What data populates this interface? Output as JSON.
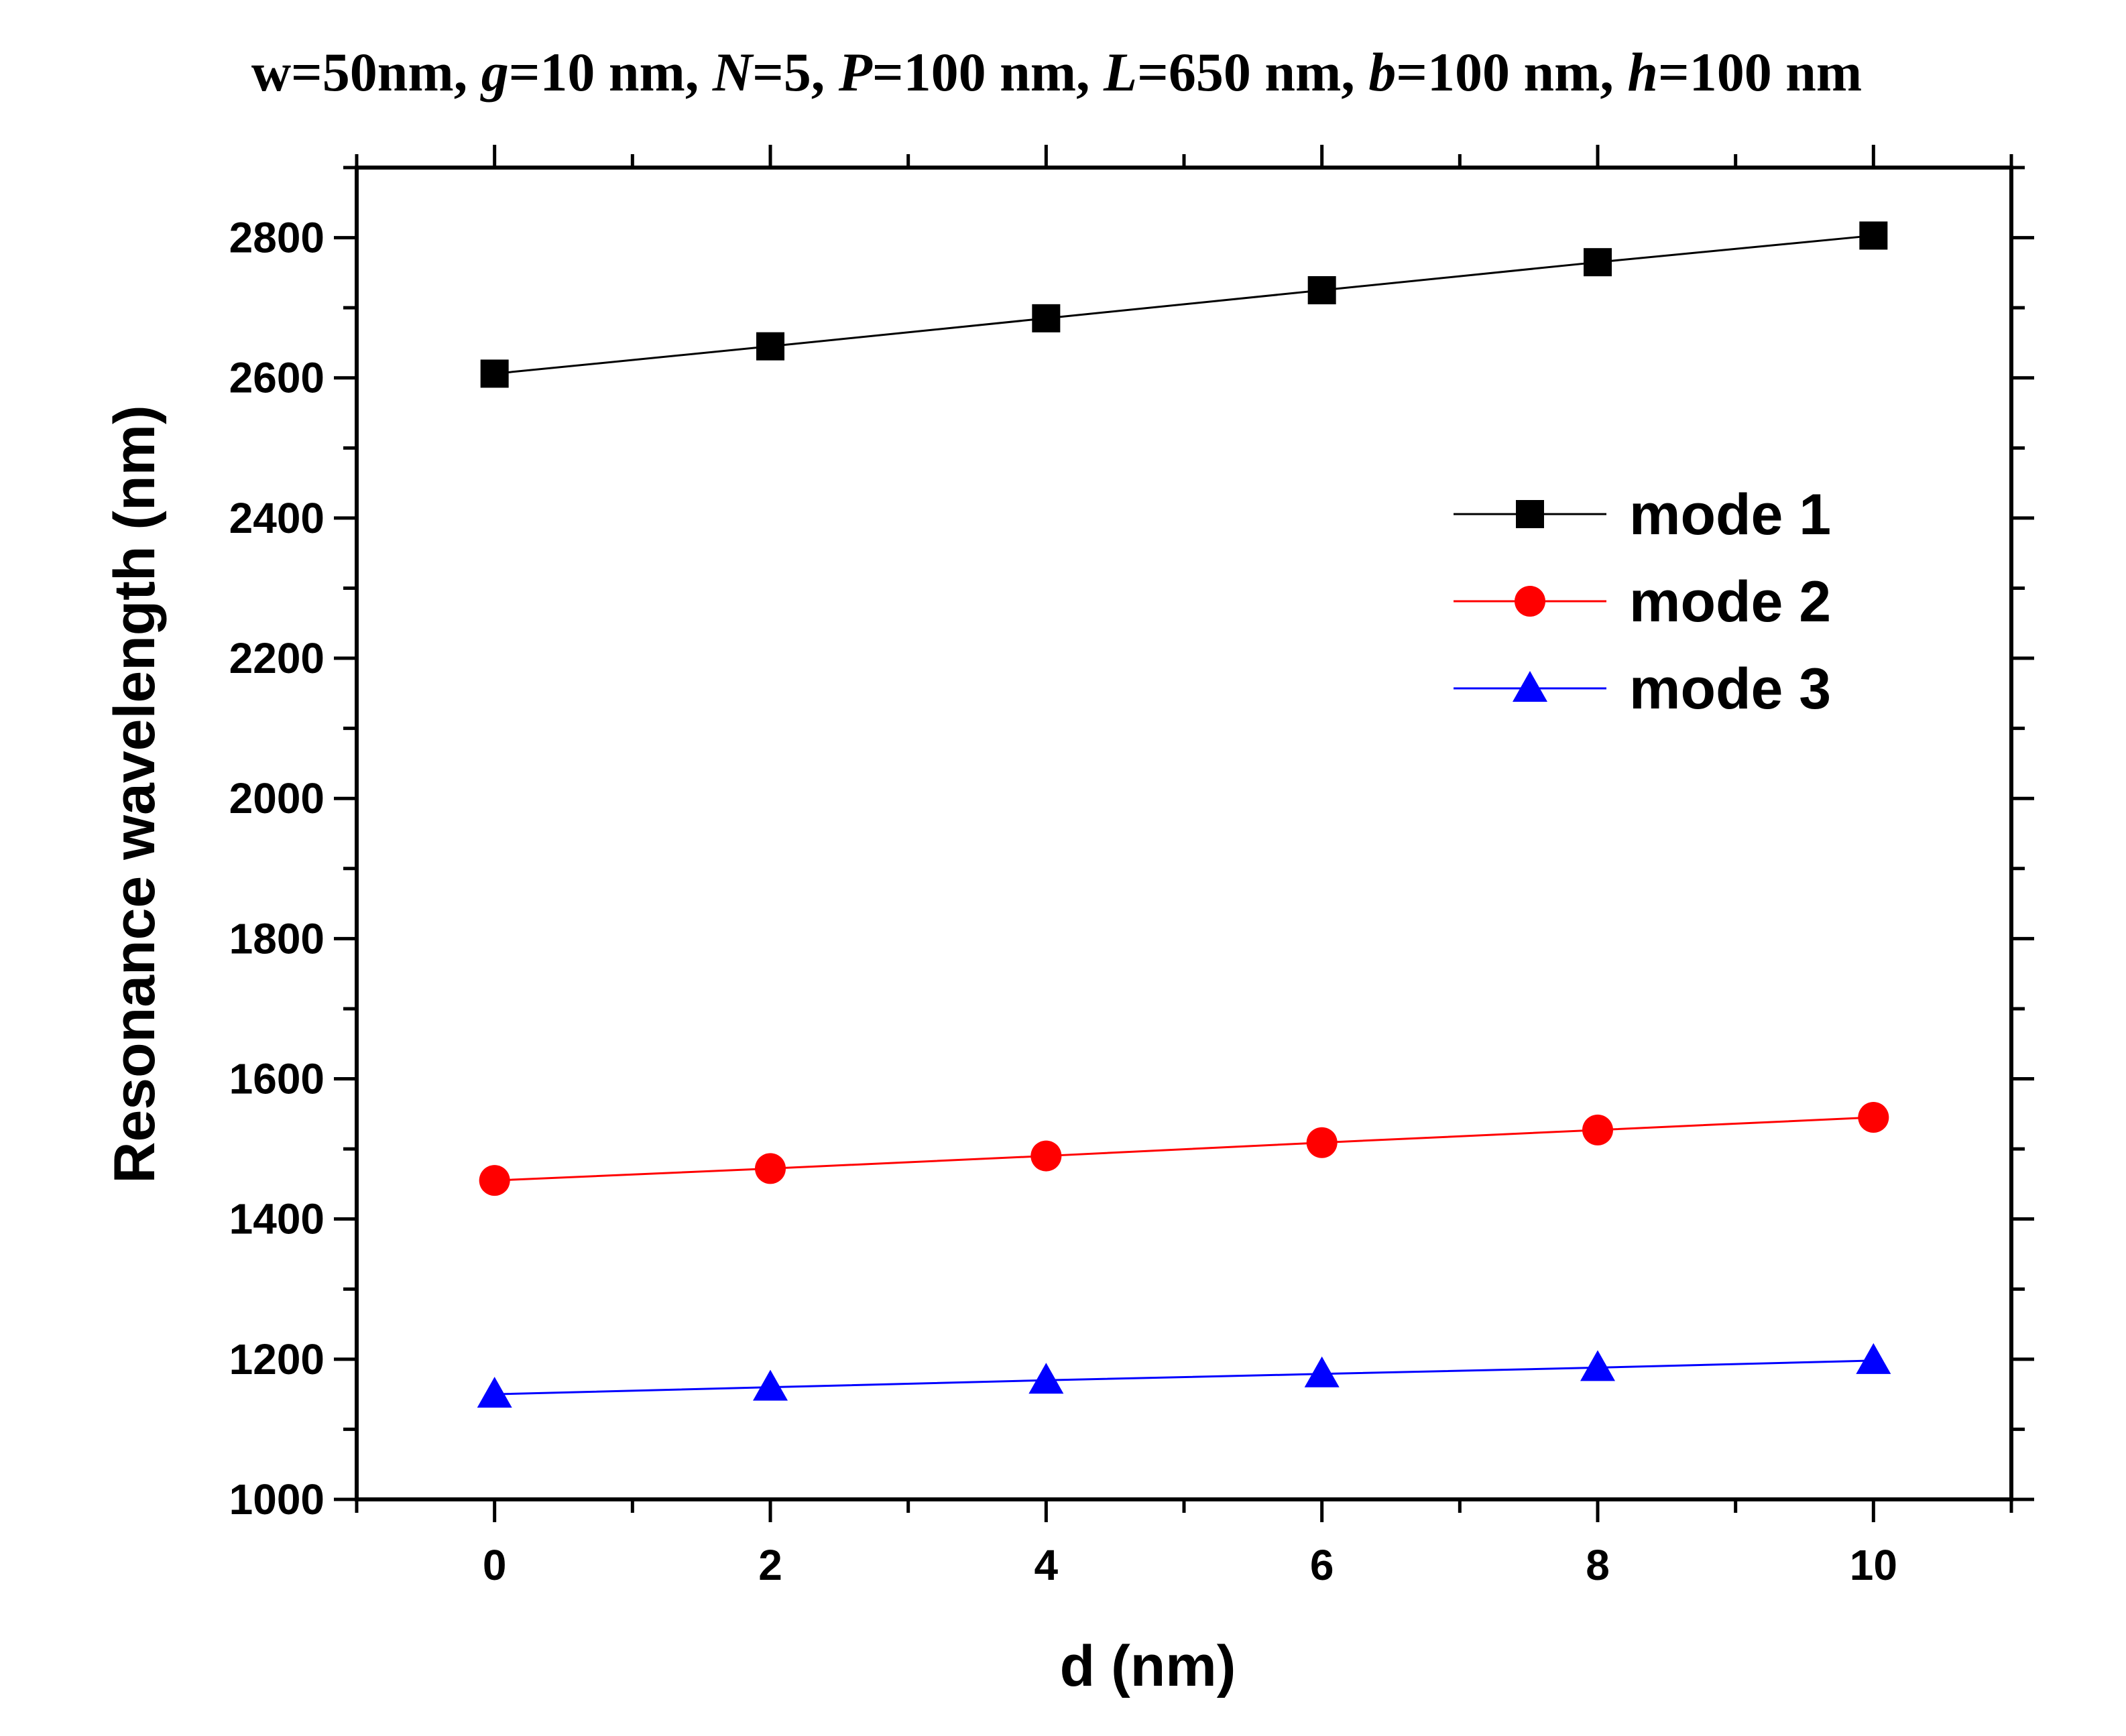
{
  "chart_data": {
    "type": "line",
    "title_parts": [
      {
        "text": "w=50nm, ",
        "style": "normal"
      },
      {
        "text": "g",
        "style": "italic"
      },
      {
        "text": "=10 nm, ",
        "style": "normal"
      },
      {
        "text": "N",
        "style": "italic"
      },
      {
        "text": "=5, ",
        "style": "normal"
      },
      {
        "text": "P",
        "style": "italic"
      },
      {
        "text": "=100 nm, ",
        "style": "normal"
      },
      {
        "text": "L",
        "style": "italic"
      },
      {
        "text": "=650 nm, ",
        "style": "normal"
      },
      {
        "text": "b",
        "style": "italic"
      },
      {
        "text": "=100 nm, ",
        "style": "normal"
      },
      {
        "text": "h",
        "style": "italic"
      },
      {
        "text": "=100 nm",
        "style": "normal"
      }
    ],
    "xlabel": "d (nm)",
    "ylabel": "Resonance wavelength (nm)",
    "xlim": [
      -1,
      11
    ],
    "ylim": [
      1000,
      2900
    ],
    "xticks": [
      0,
      2,
      4,
      6,
      8,
      10
    ],
    "yticks": [
      1000,
      1200,
      1400,
      1600,
      1800,
      2000,
      2200,
      2400,
      2600,
      2800
    ],
    "x": [
      0,
      2,
      4,
      6,
      8,
      10
    ],
    "legend_position": "upper-right",
    "series": [
      {
        "name": "mode 1",
        "marker": "square",
        "color": "#000000",
        "values": [
          2606,
          2645,
          2685,
          2725,
          2765,
          2803
        ]
      },
      {
        "name": "mode 2",
        "marker": "circle",
        "color": "#ff0000",
        "values": [
          1455,
          1472,
          1490,
          1509,
          1527,
          1545
        ]
      },
      {
        "name": "mode 3",
        "marker": "triangle",
        "color": "#0000ff",
        "values": [
          1150,
          1160,
          1170,
          1179,
          1188,
          1198
        ]
      }
    ]
  }
}
